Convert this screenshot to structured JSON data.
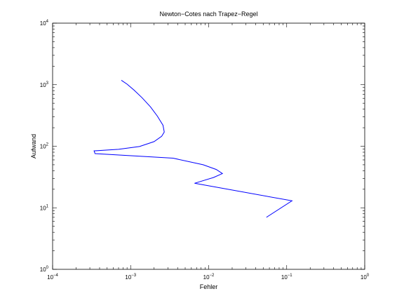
{
  "chart_data": {
    "type": "line",
    "title": "Newton−Cotes nach Trapez−Regel",
    "xlabel": "Fehler",
    "ylabel": "Aufwand",
    "xscale": "log",
    "yscale": "log",
    "xlim": [
      0.0001,
      1
    ],
    "ylim": [
      1,
      10000
    ],
    "grid": false,
    "x_ticks": [
      {
        "base": "10",
        "exp": "−4"
      },
      {
        "base": "10",
        "exp": "−3"
      },
      {
        "base": "10",
        "exp": "−2"
      },
      {
        "base": "10",
        "exp": "−1"
      },
      {
        "base": "10",
        "exp": "0"
      }
    ],
    "y_ticks": [
      {
        "base": "10",
        "exp": "0"
      },
      {
        "base": "10",
        "exp": "1"
      },
      {
        "base": "10",
        "exp": "2"
      },
      {
        "base": "10",
        "exp": "3"
      },
      {
        "base": "10",
        "exp": "4"
      }
    ],
    "line_color": "#0000ff",
    "series": [
      {
        "x": [
          0.055,
          0.117,
          0.0066,
          0.0115,
          0.015,
          0.0125,
          0.0085,
          0.0035,
          0.00035,
          0.00034,
          0.0007,
          0.0013,
          0.002,
          0.0025,
          0.0027,
          0.0026,
          0.0022,
          0.0018,
          0.0014,
          0.0011,
          0.0009,
          0.00076
        ],
        "y": [
          7,
          13,
          25,
          31,
          36,
          42,
          50,
          64,
          76,
          84,
          89,
          99,
          119,
          145,
          170,
          219,
          309,
          436,
          615,
          821,
          1020,
          1180
        ]
      }
    ]
  }
}
